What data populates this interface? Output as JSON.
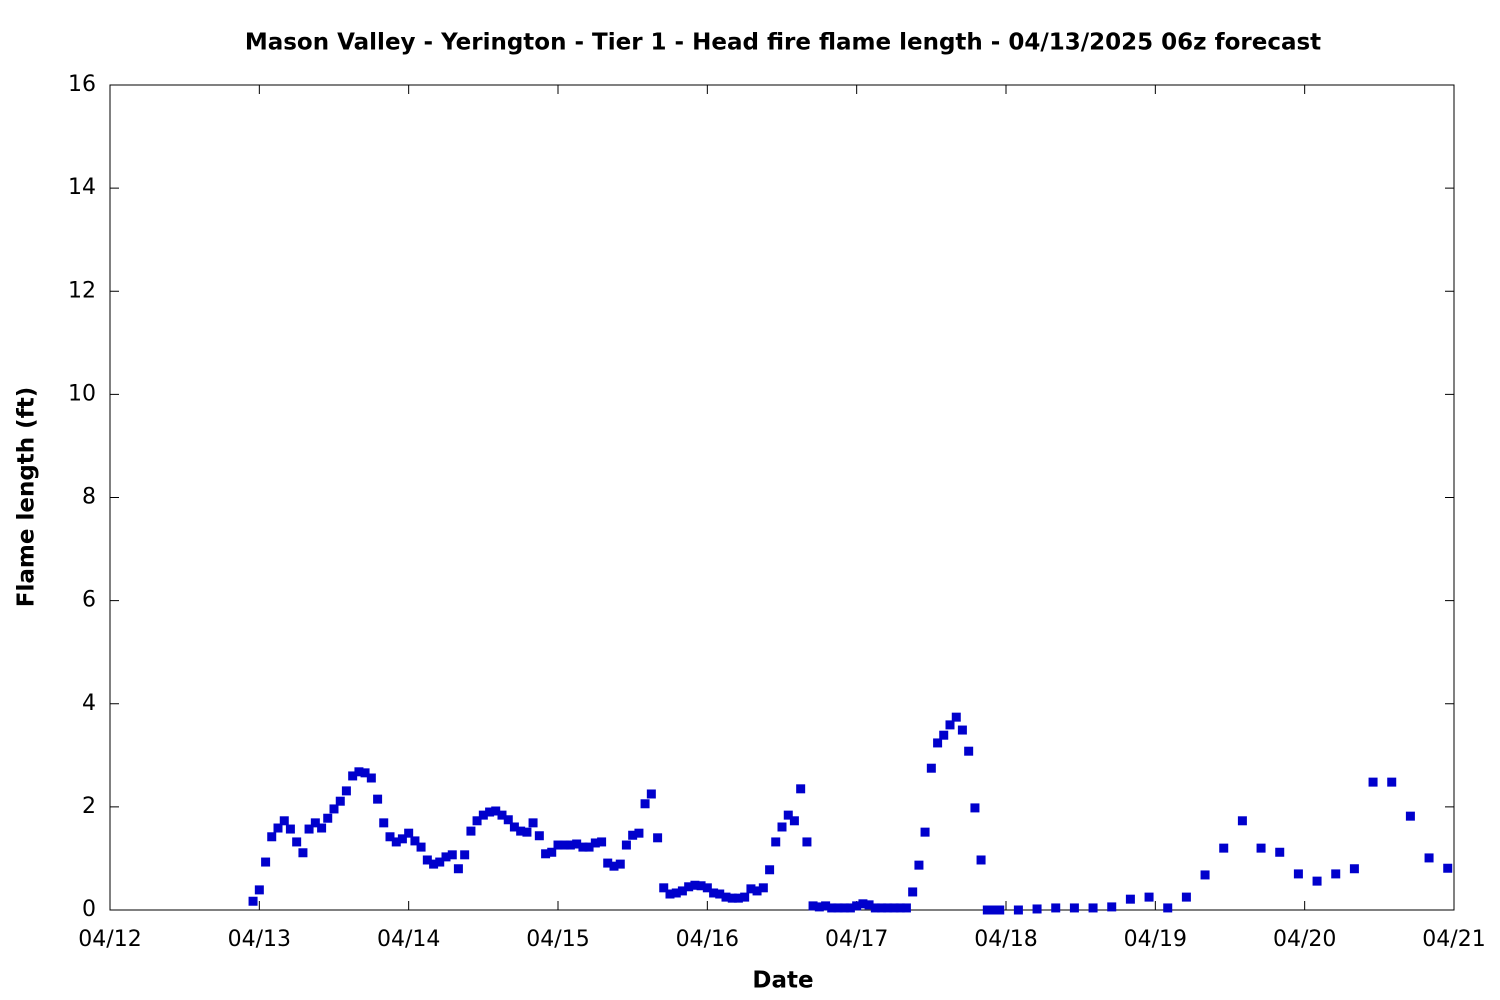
{
  "chart_data": {
    "type": "scatter",
    "title": "Mason Valley - Yerington - Tier 1 - Head fire flame length - 04/13/2025 06z forecast",
    "x_label": "Date",
    "y_label": "Flame length (ft)",
    "series": [
      {
        "color": "#0000cc",
        "x": [
          12.958,
          13.0,
          13.042,
          13.083,
          13.125,
          13.167,
          13.208,
          13.25,
          13.292,
          13.333,
          13.375,
          13.417,
          13.458,
          13.5,
          13.542,
          13.583,
          13.625,
          13.667,
          13.708,
          13.75,
          13.792,
          13.833,
          13.875,
          13.917,
          13.958,
          14.0,
          14.042,
          14.083,
          14.125,
          14.167,
          14.208,
          14.25,
          14.292,
          14.333,
          14.375,
          14.417,
          14.458,
          14.5,
          14.542,
          14.583,
          14.625,
          14.667,
          14.708,
          14.75,
          14.792,
          14.833,
          14.875,
          14.917,
          14.958,
          15.0,
          15.042,
          15.083,
          15.125,
          15.167,
          15.208,
          15.25,
          15.292,
          15.333,
          15.375,
          15.417,
          15.458,
          15.5,
          15.542,
          15.583,
          15.625,
          15.667,
          15.708,
          15.75,
          15.792,
          15.833,
          15.875,
          15.917,
          15.958,
          16.0,
          16.042,
          16.083,
          16.125,
          16.167,
          16.208,
          16.25,
          16.292,
          16.333,
          16.375,
          16.417,
          16.458,
          16.5,
          16.542,
          16.583,
          16.625,
          16.667,
          16.708,
          16.75,
          16.792,
          16.833,
          16.875,
          16.917,
          16.958,
          17.0,
          17.042,
          17.083,
          17.125,
          17.167,
          17.208,
          17.25,
          17.292,
          17.333,
          17.375,
          17.417,
          17.458,
          17.5,
          17.542,
          17.583,
          17.625,
          17.667,
          17.708,
          17.75,
          17.792,
          17.833,
          17.875,
          17.917,
          17.958,
          18.083,
          18.208,
          18.333,
          18.458,
          18.583,
          18.708,
          18.833,
          18.958,
          19.083,
          19.208,
          19.333,
          19.458,
          19.583,
          19.708,
          19.833,
          19.958,
          20.083,
          20.208,
          20.333,
          20.458,
          20.583,
          20.708,
          20.833,
          20.958
        ],
        "values": [
          0.17,
          0.39,
          0.93,
          1.42,
          1.59,
          1.73,
          1.57,
          1.32,
          1.11,
          1.57,
          1.69,
          1.59,
          1.78,
          1.96,
          2.11,
          2.31,
          2.6,
          2.68,
          2.66,
          2.56,
          2.15,
          1.69,
          1.42,
          1.32,
          1.38,
          1.49,
          1.34,
          1.22,
          0.97,
          0.89,
          0.93,
          1.03,
          1.07,
          0.8,
          1.07,
          1.53,
          1.73,
          1.84,
          1.9,
          1.92,
          1.84,
          1.75,
          1.61,
          1.53,
          1.51,
          1.69,
          1.44,
          1.09,
          1.12,
          1.26,
          1.26,
          1.26,
          1.28,
          1.22,
          1.22,
          1.3,
          1.32,
          0.91,
          0.85,
          0.89,
          1.26,
          1.45,
          1.49,
          2.06,
          2.25,
          1.4,
          0.43,
          0.31,
          0.33,
          0.37,
          0.45,
          0.48,
          0.47,
          0.43,
          0.33,
          0.31,
          0.25,
          0.23,
          0.23,
          0.25,
          0.41,
          0.37,
          0.43,
          0.78,
          1.32,
          1.61,
          1.84,
          1.73,
          2.35,
          1.32,
          0.08,
          0.06,
          0.08,
          0.04,
          0.04,
          0.04,
          0.04,
          0.08,
          0.12,
          0.1,
          0.04,
          0.04,
          0.04,
          0.04,
          0.04,
          0.04,
          0.35,
          0.87,
          1.51,
          2.75,
          3.24,
          3.39,
          3.59,
          3.74,
          3.49,
          3.08,
          1.98,
          0.97,
          0,
          0,
          0,
          0,
          0.02,
          0.04,
          0.04,
          0.04,
          0.06,
          0.21,
          0.25,
          0.04,
          0.25,
          0.68,
          1.2,
          1.73,
          1.2,
          1.12,
          0.7,
          0.56,
          0.7,
          0.8,
          2.48,
          2.48,
          1.82,
          1.01,
          0.81
        ]
      }
    ],
    "xlim": [
      12,
      21
    ],
    "xticks": [
      {
        "value": 12,
        "label": "04/12"
      },
      {
        "value": 13,
        "label": "04/13"
      },
      {
        "value": 14,
        "label": "04/14"
      },
      {
        "value": 15,
        "label": "04/15"
      },
      {
        "value": 16,
        "label": "04/16"
      },
      {
        "value": 17,
        "label": "04/17"
      },
      {
        "value": 18,
        "label": "04/18"
      },
      {
        "value": 19,
        "label": "04/19"
      },
      {
        "value": 20,
        "label": "04/20"
      },
      {
        "value": 21,
        "label": "04/21"
      }
    ],
    "ylim": [
      0,
      16
    ],
    "yticks": [
      0,
      2,
      4,
      6,
      8,
      10,
      12,
      14,
      16
    ],
    "grid": false
  }
}
